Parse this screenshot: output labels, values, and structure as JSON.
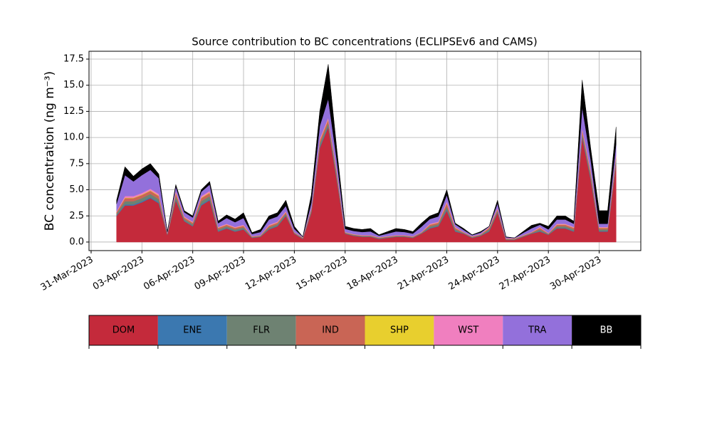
{
  "chart_data": {
    "type": "stacked_area",
    "title": "Source contribution to BC concentrations (ECLIPSEv6 and CAMS)",
    "y_label": "BC concentration (ng m⁻³)",
    "x": [
      "2023-04-01T12:00",
      "2023-04-02T00:00",
      "2023-04-02T12:00",
      "2023-04-03T00:00",
      "2023-04-03T12:00",
      "2023-04-04T00:00",
      "2023-04-04T12:00",
      "2023-04-05T00:00",
      "2023-04-05T12:00",
      "2023-04-06T00:00",
      "2023-04-06T12:00",
      "2023-04-07T00:00",
      "2023-04-07T12:00",
      "2023-04-08T00:00",
      "2023-04-08T12:00",
      "2023-04-09T00:00",
      "2023-04-09T12:00",
      "2023-04-10T00:00",
      "2023-04-10T12:00",
      "2023-04-11T00:00",
      "2023-04-11T12:00",
      "2023-04-12T00:00",
      "2023-04-12T12:00",
      "2023-04-13T00:00",
      "2023-04-13T12:00",
      "2023-04-14T00:00",
      "2023-04-14T12:00",
      "2023-04-15T00:00",
      "2023-04-15T12:00",
      "2023-04-16T00:00",
      "2023-04-16T12:00",
      "2023-04-17T00:00",
      "2023-04-17T12:00",
      "2023-04-18T00:00",
      "2023-04-18T12:00",
      "2023-04-19T00:00",
      "2023-04-19T12:00",
      "2023-04-20T00:00",
      "2023-04-20T12:00",
      "2023-04-21T00:00",
      "2023-04-21T12:00",
      "2023-04-22T00:00",
      "2023-04-22T12:00",
      "2023-04-23T00:00",
      "2023-04-23T12:00",
      "2023-04-24T00:00",
      "2023-04-24T12:00",
      "2023-04-25T00:00",
      "2023-04-25T12:00",
      "2023-04-26T00:00",
      "2023-04-26T12:00",
      "2023-04-27T00:00",
      "2023-04-27T12:00",
      "2023-04-28T00:00",
      "2023-04-28T12:00",
      "2023-04-29T00:00",
      "2023-04-29T12:00",
      "2023-04-30T00:00",
      "2023-04-30T12:00",
      "2023-05-01T00:00"
    ],
    "series": [
      {
        "name": "DOM",
        "color": "#c42a3b",
        "values": [
          2.5,
          3.5,
          3.5,
          3.8,
          4.2,
          3.7,
          0.7,
          4.0,
          2.0,
          1.5,
          3.5,
          4.0,
          1.0,
          1.3,
          1.0,
          1.2,
          0.4,
          0.5,
          1.2,
          1.5,
          2.5,
          0.8,
          0.3,
          2.8,
          9.0,
          11.0,
          6.0,
          0.8,
          0.6,
          0.5,
          0.5,
          0.3,
          0.4,
          0.5,
          0.5,
          0.4,
          0.8,
          1.3,
          1.5,
          3.0,
          1.0,
          0.8,
          0.4,
          0.6,
          1.0,
          2.8,
          0.2,
          0.2,
          0.5,
          0.8,
          1.0,
          0.7,
          1.3,
          1.3,
          1.0,
          10.0,
          6.0,
          1.0,
          1.0,
          7.5
        ]
      },
      {
        "name": "ENE",
        "color": "#3b78b0",
        "values": [
          0.05,
          0.1,
          0.1,
          0.1,
          0.1,
          0.1,
          0.02,
          0.1,
          0.05,
          0.05,
          0.1,
          0.1,
          0.05,
          0.05,
          0.05,
          0.05,
          0.02,
          0.02,
          0.05,
          0.05,
          0.05,
          0.02,
          0.02,
          0.05,
          0.1,
          0.1,
          0.1,
          0.02,
          0.02,
          0.02,
          0.02,
          0.02,
          0.02,
          0.02,
          0.02,
          0.02,
          0.02,
          0.05,
          0.05,
          0.1,
          0.05,
          0.02,
          0.02,
          0.02,
          0.05,
          0.05,
          0.02,
          0.02,
          0.02,
          0.02,
          0.05,
          0.02,
          0.05,
          0.05,
          0.05,
          0.1,
          0.1,
          0.05,
          0.05,
          0.1
        ]
      },
      {
        "name": "FLR",
        "color": "#6e8272",
        "values": [
          0.15,
          0.3,
          0.3,
          0.3,
          0.3,
          0.3,
          0.05,
          0.3,
          0.15,
          0.15,
          0.3,
          0.3,
          0.15,
          0.15,
          0.15,
          0.15,
          0.05,
          0.05,
          0.15,
          0.15,
          0.15,
          0.05,
          0.05,
          0.15,
          0.3,
          0.3,
          0.3,
          0.05,
          0.05,
          0.05,
          0.05,
          0.05,
          0.05,
          0.05,
          0.05,
          0.05,
          0.05,
          0.15,
          0.15,
          0.3,
          0.15,
          0.05,
          0.05,
          0.05,
          0.15,
          0.15,
          0.05,
          0.05,
          0.05,
          0.05,
          0.15,
          0.05,
          0.15,
          0.15,
          0.15,
          0.3,
          0.3,
          0.15,
          0.15,
          0.3
        ]
      },
      {
        "name": "IND",
        "color": "#c96555",
        "values": [
          0.15,
          0.3,
          0.3,
          0.3,
          0.3,
          0.3,
          0.05,
          0.3,
          0.15,
          0.15,
          0.3,
          0.3,
          0.15,
          0.15,
          0.15,
          0.15,
          0.05,
          0.05,
          0.15,
          0.15,
          0.15,
          0.05,
          0.05,
          0.15,
          0.3,
          0.3,
          0.3,
          0.05,
          0.05,
          0.05,
          0.05,
          0.05,
          0.05,
          0.05,
          0.05,
          0.05,
          0.05,
          0.15,
          0.15,
          0.3,
          0.15,
          0.05,
          0.05,
          0.05,
          0.15,
          0.15,
          0.05,
          0.05,
          0.05,
          0.05,
          0.15,
          0.05,
          0.15,
          0.15,
          0.15,
          0.3,
          0.3,
          0.15,
          0.15,
          0.3
        ]
      },
      {
        "name": "SHP",
        "color": "#e8cf2e",
        "values": [
          0.02,
          0.05,
          0.05,
          0.05,
          0.05,
          0.05,
          0.01,
          0.05,
          0.02,
          0.02,
          0.05,
          0.05,
          0.02,
          0.02,
          0.02,
          0.02,
          0.01,
          0.01,
          0.02,
          0.02,
          0.02,
          0.01,
          0.01,
          0.02,
          0.05,
          0.05,
          0.05,
          0.01,
          0.01,
          0.01,
          0.01,
          0.01,
          0.01,
          0.01,
          0.01,
          0.01,
          0.01,
          0.02,
          0.02,
          0.05,
          0.02,
          0.01,
          0.01,
          0.01,
          0.02,
          0.02,
          0.01,
          0.01,
          0.01,
          0.01,
          0.02,
          0.01,
          0.02,
          0.02,
          0.02,
          0.05,
          0.05,
          0.02,
          0.02,
          0.05
        ]
      },
      {
        "name": "WST",
        "color": "#f07fbf",
        "values": [
          0.08,
          0.15,
          0.15,
          0.15,
          0.15,
          0.15,
          0.03,
          0.15,
          0.08,
          0.08,
          0.15,
          0.15,
          0.08,
          0.08,
          0.08,
          0.08,
          0.03,
          0.03,
          0.08,
          0.08,
          0.08,
          0.03,
          0.03,
          0.08,
          0.15,
          0.15,
          0.15,
          0.03,
          0.03,
          0.03,
          0.03,
          0.03,
          0.03,
          0.03,
          0.03,
          0.03,
          0.03,
          0.08,
          0.08,
          0.15,
          0.08,
          0.03,
          0.03,
          0.03,
          0.08,
          0.08,
          0.03,
          0.03,
          0.03,
          0.03,
          0.08,
          0.03,
          0.08,
          0.08,
          0.08,
          0.15,
          0.15,
          0.08,
          0.08,
          0.15
        ]
      },
      {
        "name": "TRA",
        "color": "#9370db",
        "values": [
          0.7,
          2.0,
          1.4,
          1.7,
          1.8,
          1.5,
          0.1,
          0.4,
          0.4,
          0.4,
          0.4,
          0.6,
          0.35,
          0.55,
          0.45,
          0.65,
          0.2,
          0.3,
          0.5,
          0.5,
          0.5,
          0.3,
          0.03,
          0.5,
          1.2,
          1.8,
          1.0,
          0.3,
          0.3,
          0.3,
          0.35,
          0.15,
          0.25,
          0.35,
          0.3,
          0.25,
          0.5,
          0.45,
          0.5,
          0.6,
          0.25,
          0.2,
          0.1,
          0.15,
          0.03,
          0.45,
          0.1,
          0.03,
          0.2,
          0.35,
          0.2,
          0.35,
          0.4,
          0.4,
          0.3,
          2.0,
          1.0,
          0.3,
          0.3,
          1.0
        ]
      },
      {
        "name": "BB",
        "color": "#000000",
        "values": [
          0.35,
          0.8,
          0.5,
          0.6,
          0.6,
          0.4,
          0.04,
          0.2,
          0.15,
          0.15,
          0.2,
          0.3,
          0.2,
          0.3,
          0.3,
          0.5,
          0.14,
          0.24,
          0.35,
          0.35,
          0.55,
          0.24,
          0.01,
          0.75,
          1.4,
          3.3,
          1.1,
          0.24,
          0.24,
          0.24,
          0.29,
          0.09,
          0.19,
          0.29,
          0.24,
          0.19,
          0.34,
          0.3,
          0.35,
          0.5,
          0.1,
          0.14,
          0.04,
          0.09,
          0.02,
          0.3,
          0.04,
          0.01,
          0.14,
          0.29,
          0.15,
          0.29,
          0.35,
          0.35,
          0.25,
          2.6,
          1.1,
          1.25,
          1.25,
          1.6
        ]
      }
    ],
    "xlim": [
      "2023-03-30T21:00",
      "2023-05-02T11:00"
    ],
    "xticks": [
      {
        "value": "2023-03-31T00:00",
        "label": "31-Mar-2023"
      },
      {
        "value": "2023-04-03T00:00",
        "label": "03-Apr-2023"
      },
      {
        "value": "2023-04-06T00:00",
        "label": "06-Apr-2023"
      },
      {
        "value": "2023-04-09T00:00",
        "label": "09-Apr-2023"
      },
      {
        "value": "2023-04-12T00:00",
        "label": "12-Apr-2023"
      },
      {
        "value": "2023-04-15T00:00",
        "label": "15-Apr-2023"
      },
      {
        "value": "2023-04-18T00:00",
        "label": "18-Apr-2023"
      },
      {
        "value": "2023-04-21T00:00",
        "label": "21-Apr-2023"
      },
      {
        "value": "2023-04-24T00:00",
        "label": "24-Apr-2023"
      },
      {
        "value": "2023-04-27T00:00",
        "label": "27-Apr-2023"
      },
      {
        "value": "2023-04-30T00:00",
        "label": "30-Apr-2023"
      }
    ],
    "ylim": [
      -0.82,
      18.25
    ],
    "yticks": [
      {
        "value": 0,
        "label": "0.0"
      },
      2.5,
      {
        "value": 5,
        "label": "5.0"
      },
      7.5,
      {
        "value": 10,
        "label": "10.0"
      },
      12.5,
      {
        "value": 15,
        "label": "15.0"
      },
      17.5
    ],
    "grid": true
  }
}
